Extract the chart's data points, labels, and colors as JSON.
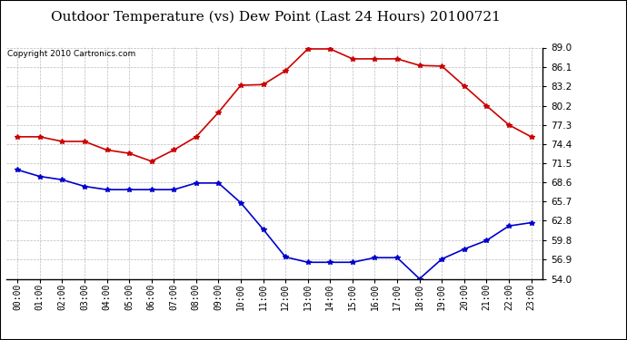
{
  "title": "Outdoor Temperature (vs) Dew Point (Last 24 Hours) 20100721",
  "copyright": "Copyright 2010 Cartronics.com",
  "hours": [
    "00:00",
    "01:00",
    "02:00",
    "03:00",
    "04:00",
    "05:00",
    "06:00",
    "07:00",
    "08:00",
    "09:00",
    "10:00",
    "11:00",
    "12:00",
    "13:00",
    "14:00",
    "15:00",
    "16:00",
    "17:00",
    "18:00",
    "19:00",
    "20:00",
    "21:00",
    "22:00",
    "23:00"
  ],
  "temp": [
    75.5,
    75.5,
    74.8,
    74.8,
    73.5,
    73.0,
    71.8,
    73.5,
    75.5,
    79.2,
    83.3,
    83.4,
    85.5,
    88.8,
    88.8,
    87.3,
    87.3,
    87.3,
    86.3,
    86.2,
    83.2,
    80.2,
    77.3,
    75.5
  ],
  "dew": [
    70.5,
    69.5,
    69.0,
    68.0,
    67.5,
    67.5,
    67.5,
    67.5,
    68.5,
    68.5,
    65.5,
    61.5,
    57.3,
    56.5,
    56.5,
    56.5,
    57.2,
    57.2,
    54.0,
    57.0,
    58.5,
    59.8,
    62.0,
    62.5
  ],
  "temp_color": "#cc0000",
  "dew_color": "#0000cc",
  "bg_color": "#ffffff",
  "plot_bg": "#ffffff",
  "grid_color": "#aaaaaa",
  "ylim_min": 54.0,
  "ylim_max": 89.0,
  "yticks": [
    54.0,
    56.9,
    59.8,
    62.8,
    65.7,
    68.6,
    71.5,
    74.4,
    77.3,
    80.2,
    83.2,
    86.1,
    89.0
  ],
  "title_fontsize": 11,
  "copyright_fontsize": 6.5,
  "marker_size": 4,
  "linewidth": 1.2
}
